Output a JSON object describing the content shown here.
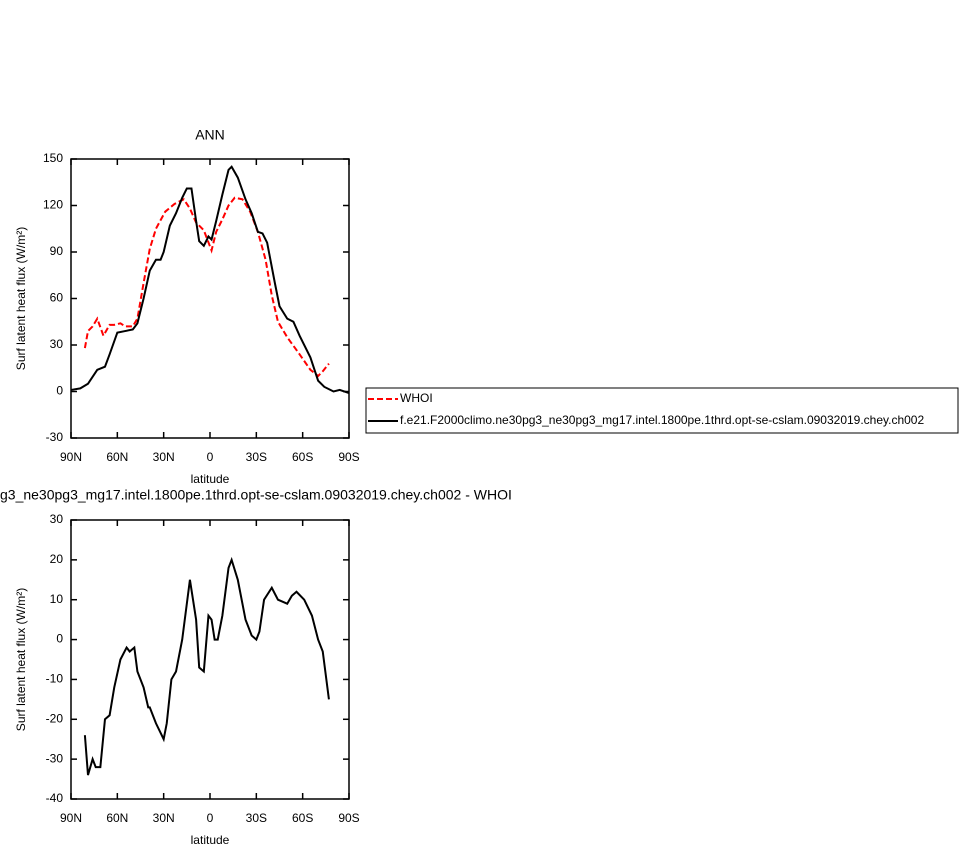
{
  "chart_data": [
    {
      "type": "line",
      "title": "ANN",
      "xlabel": "latitude",
      "ylabel": "Surf latent heat flux (W/m²)",
      "xlim": [
        90,
        -90
      ],
      "ylim": [
        -30,
        150
      ],
      "xticks": [
        {
          "value": 90,
          "label": "90N"
        },
        {
          "value": 60,
          "label": "60N"
        },
        {
          "value": 30,
          "label": "30N"
        },
        0,
        {
          "value": -30,
          "label": "30S"
        },
        {
          "value": -60,
          "label": "60S"
        },
        {
          "value": -90,
          "label": "90S"
        }
      ],
      "yticks": [
        -30,
        0,
        30,
        60,
        90,
        120,
        150
      ],
      "series": [
        {
          "name": "WHOI",
          "color": "#ff0000",
          "line_style": "dashed",
          "x": [
            81,
            79,
            76,
            73,
            69,
            65,
            62,
            58,
            55,
            50,
            47,
            43,
            39,
            35,
            29,
            23,
            17,
            13,
            9,
            4,
            -1,
            -4,
            -8,
            -12,
            -16,
            -21,
            -26,
            -31,
            -36,
            -40,
            -44,
            -50,
            -58,
            -65,
            -70,
            -73,
            -77
          ],
          "values": [
            28,
            39,
            42,
            47,
            36,
            43,
            43,
            44,
            42,
            42,
            47,
            70,
            92,
            105,
            116,
            121,
            124,
            118,
            109,
            104,
            91,
            103,
            111,
            120,
            125,
            124,
            116,
            103,
            85,
            62,
            45,
            35,
            24,
            14,
            10,
            13,
            18
          ]
        },
        {
          "name": "f.e21.F2000climo.ne30pg3_ne30pg3_mg17.intel.1800pe.1thrd.opt-se-cslam.09032019.chey.ch002",
          "color": "#000000",
          "line_style": "solid",
          "x": [
            90,
            84,
            79,
            73,
            68,
            65,
            60,
            55,
            50,
            47,
            43,
            39,
            35,
            32,
            30,
            26,
            22,
            18,
            15,
            12,
            9,
            7,
            4,
            1,
            -1,
            -4,
            -8,
            -12,
            -14,
            -18,
            -23,
            -27,
            -31,
            -34,
            -37,
            -42,
            -45,
            -50,
            -54,
            -58,
            -65,
            -70,
            -74,
            -80,
            -84,
            -90
          ],
          "values": [
            1,
            2,
            5,
            14,
            16,
            24,
            38,
            39,
            40,
            44,
            60,
            78,
            85,
            85,
            90,
            107,
            115,
            125,
            131,
            131,
            110,
            97,
            94,
            100,
            98,
            110,
            127,
            143,
            145,
            138,
            124,
            115,
            103,
            102,
            96,
            70,
            55,
            47,
            45,
            36,
            22,
            7,
            3,
            0,
            1,
            -1
          ]
        }
      ]
    },
    {
      "type": "line",
      "title": "g3_ne30pg3_mg17.intel.1800pe.1thrd.opt-se-cslam.09032019.chey.ch002 - WHOI",
      "xlabel": "latitude",
      "ylabel": "Surf latent heat flux (W/m²)",
      "xlim": [
        90,
        -90
      ],
      "ylim": [
        -40,
        30
      ],
      "xticks": [
        {
          "value": 90,
          "label": "90N"
        },
        {
          "value": 60,
          "label": "60N"
        },
        {
          "value": 30,
          "label": "30N"
        },
        0,
        {
          "value": -30,
          "label": "30S"
        },
        {
          "value": -60,
          "label": "60S"
        },
        {
          "value": -90,
          "label": "90S"
        }
      ],
      "yticks": [
        -40,
        -30,
        -20,
        -10,
        0,
        10,
        20,
        30
      ],
      "series": [
        {
          "color": "#000000",
          "line_style": "solid",
          "x": [
            81,
            79,
            76,
            74,
            71,
            68,
            65,
            62,
            58,
            54,
            52,
            49,
            47,
            43,
            40,
            39,
            35,
            30,
            28,
            25,
            22,
            18,
            13,
            9,
            7,
            4,
            1,
            -1,
            -3,
            -5,
            -8,
            -12,
            -14,
            -18,
            -23,
            -27,
            -30,
            -32,
            -35,
            -40,
            -44,
            -50,
            -53,
            -56,
            -61,
            -66,
            -70,
            -73,
            -77
          ],
          "values": [
            -24,
            -34,
            -30,
            -32,
            -32,
            -20,
            -19,
            -12,
            -5,
            -2,
            -3,
            -2,
            -8,
            -12,
            -17,
            -17,
            -21,
            -25,
            -21,
            -10,
            -8,
            0,
            15,
            5,
            -7,
            -8,
            6,
            5,
            0,
            0,
            6,
            18,
            20,
            15,
            5,
            1,
            0,
            2,
            10,
            13,
            10,
            9,
            11,
            12,
            10,
            6,
            0,
            -3,
            -15
          ]
        }
      ]
    }
  ]
}
